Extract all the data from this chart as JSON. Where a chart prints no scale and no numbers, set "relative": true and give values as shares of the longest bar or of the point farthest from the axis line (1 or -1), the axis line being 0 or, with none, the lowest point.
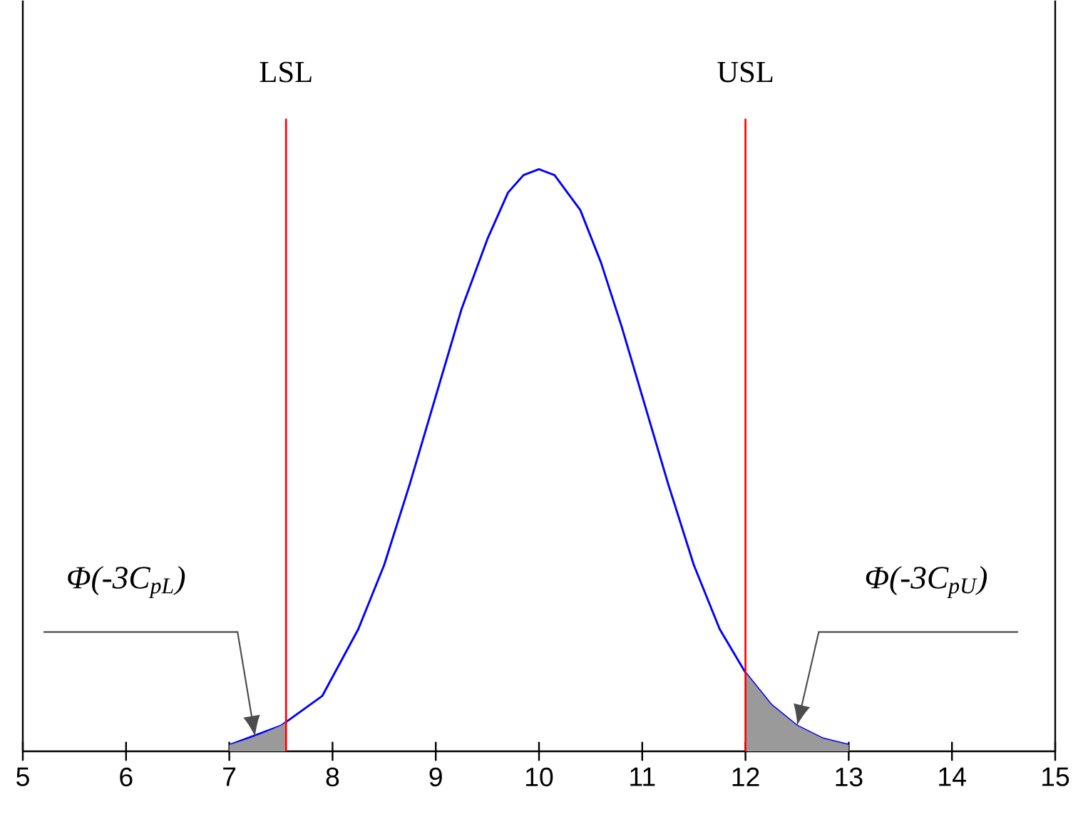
{
  "chart_data": {
    "type": "line",
    "relative": true,
    "tick_labels": "x",
    "xlim": [
      5,
      15
    ],
    "xticks": [
      5,
      6,
      7,
      8,
      9,
      10,
      11,
      12,
      13,
      14,
      15
    ],
    "series": [
      {
        "color": "#0000ff",
        "x": [
          7,
          7.5,
          7.9,
          8.25,
          8.5,
          8.75,
          9,
          9.25,
          9.5,
          9.7,
          9.85,
          10,
          10.15,
          10.4,
          10.6,
          10.8,
          11,
          11.25,
          11.5,
          11.75,
          12,
          12.25,
          12.5,
          12.75,
          13
        ],
        "values": [
          0.011,
          0.044,
          0.095,
          0.21,
          0.32,
          0.46,
          0.61,
          0.76,
          0.88,
          0.96,
          0.99,
          1.0,
          0.99,
          0.93,
          0.84,
          0.73,
          0.61,
          0.46,
          0.32,
          0.21,
          0.135,
          0.08,
          0.044,
          0.022,
          0.011
        ]
      },
      {
        "type": "area",
        "color": "#9a9a9a",
        "x": [
          7,
          7.25,
          7.5,
          7.55
        ],
        "values": [
          0.011,
          0.025,
          0.044,
          0.05
        ]
      },
      {
        "type": "area",
        "color": "#9a9a9a",
        "x": [
          12,
          12.25,
          12.5,
          12.75,
          13
        ],
        "values": [
          0.135,
          0.08,
          0.044,
          0.022,
          0.011
        ]
      }
    ],
    "ref_lines": [
      {
        "axis": "x",
        "value": 7.55,
        "label": "LSL",
        "color": "#ff0000"
      },
      {
        "axis": "x",
        "value": 12,
        "label": "USL",
        "color": "#ff0000"
      }
    ],
    "annotations": [
      "Φ(-3C$_{pL}$)",
      "Φ(-3C$_{pU}$)"
    ]
  }
}
